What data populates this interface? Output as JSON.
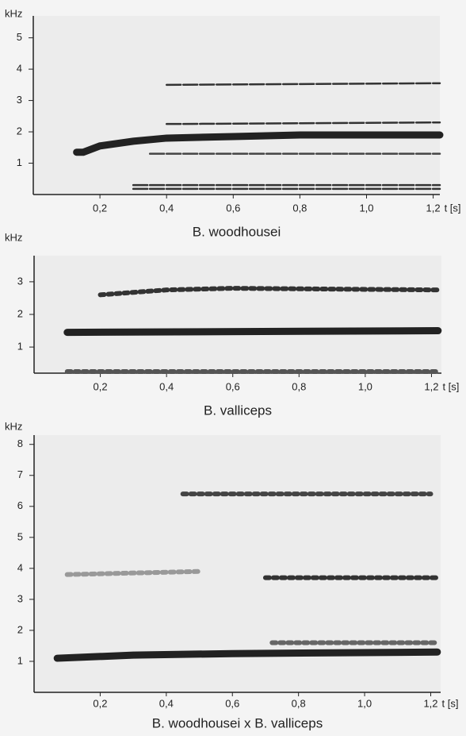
{
  "chart_data": [
    {
      "type": "spectrogram",
      "title": "B. woodhousei",
      "y_label": "kHz",
      "x_label": "t [s]",
      "xlim": [
        0,
        1.22
      ],
      "ylim": [
        0,
        5.7
      ],
      "yticks": [
        1,
        2,
        3,
        4,
        5
      ],
      "xticks": [
        {
          "value": 0.2,
          "label": "0,2"
        },
        {
          "value": 0.4,
          "label": "0,4"
        },
        {
          "value": 0.6,
          "label": "0,6"
        },
        {
          "value": 0.8,
          "label": "0,8"
        },
        {
          "value": 1.0,
          "label": "1,0"
        },
        {
          "value": 1.2,
          "label": "1,2"
        }
      ],
      "bands": [
        {
          "style": "thick",
          "color": "#222",
          "x": [
            0.13,
            0.15,
            0.2,
            0.3,
            0.4,
            0.6,
            0.8,
            1.0,
            1.22
          ],
          "values": [
            1.35,
            1.35,
            1.55,
            1.7,
            1.8,
            1.85,
            1.9,
            1.9,
            1.9
          ]
        },
        {
          "style": "thin",
          "color": "#333",
          "x": [
            0.4,
            1.22
          ],
          "values": [
            2.25,
            2.3
          ]
        },
        {
          "style": "thin",
          "color": "#444",
          "x": [
            0.35,
            1.22
          ],
          "values": [
            1.3,
            1.3
          ]
        },
        {
          "style": "thin",
          "color": "#333",
          "x": [
            0.4,
            1.22
          ],
          "values": [
            3.5,
            3.55
          ]
        },
        {
          "style": "thin",
          "color": "#333",
          "x": [
            0.3,
            1.22
          ],
          "values": [
            0.3,
            0.3
          ]
        },
        {
          "style": "thin",
          "color": "#333",
          "x": [
            0.3,
            1.22
          ],
          "values": [
            0.18,
            0.18
          ]
        }
      ]
    },
    {
      "type": "spectrogram",
      "title": "B. valliceps",
      "y_label": "kHz",
      "x_label": "t [s]",
      "xlim": [
        0,
        1.23
      ],
      "ylim": [
        0.2,
        3.8
      ],
      "yticks": [
        1,
        2,
        3
      ],
      "xticks": [
        {
          "value": 0.2,
          "label": "0,2"
        },
        {
          "value": 0.4,
          "label": "0,4"
        },
        {
          "value": 0.6,
          "label": "0,6"
        },
        {
          "value": 0.8,
          "label": "0,8"
        },
        {
          "value": 1.0,
          "label": "1,0"
        },
        {
          "value": 1.2,
          "label": "1,2"
        }
      ],
      "bands": [
        {
          "style": "dotted",
          "color": "#333",
          "x": [
            0.2,
            0.4,
            0.6,
            1.22
          ],
          "values": [
            2.6,
            2.75,
            2.8,
            2.75
          ]
        },
        {
          "style": "thick",
          "color": "#222",
          "x": [
            0.1,
            1.22
          ],
          "values": [
            1.45,
            1.5
          ]
        },
        {
          "style": "dotted",
          "color": "#555",
          "x": [
            0.1,
            1.22
          ],
          "values": [
            0.25,
            0.25
          ]
        }
      ]
    },
    {
      "type": "spectrogram",
      "title": "B. woodhousei x B. valliceps",
      "y_label": "kHz",
      "x_label": "t [s]",
      "xlim": [
        0,
        1.23
      ],
      "ylim": [
        0,
        8.3
      ],
      "yticks": [
        1,
        2,
        3,
        4,
        5,
        6,
        7,
        8
      ],
      "xticks": [
        {
          "value": 0.2,
          "label": "0,2"
        },
        {
          "value": 0.4,
          "label": "0,4"
        },
        {
          "value": 0.6,
          "label": "0,6"
        },
        {
          "value": 0.8,
          "label": "0,8"
        },
        {
          "value": 1.0,
          "label": "1,0"
        },
        {
          "value": 1.2,
          "label": "1,2"
        }
      ],
      "bands": [
        {
          "style": "dotted",
          "color": "#444",
          "x": [
            0.45,
            1.2
          ],
          "values": [
            6.4,
            6.4
          ]
        },
        {
          "style": "dotted",
          "color": "#999",
          "x": [
            0.1,
            0.5
          ],
          "values": [
            3.8,
            3.9
          ]
        },
        {
          "style": "dotted",
          "color": "#333",
          "x": [
            0.7,
            1.22
          ],
          "values": [
            3.7,
            3.7
          ]
        },
        {
          "style": "dotted",
          "color": "#666",
          "x": [
            0.72,
            1.22
          ],
          "values": [
            1.6,
            1.6
          ]
        },
        {
          "style": "thick",
          "color": "#222",
          "x": [
            0.07,
            0.3,
            0.6,
            1.22
          ],
          "values": [
            1.1,
            1.2,
            1.25,
            1.3
          ]
        }
      ]
    }
  ]
}
